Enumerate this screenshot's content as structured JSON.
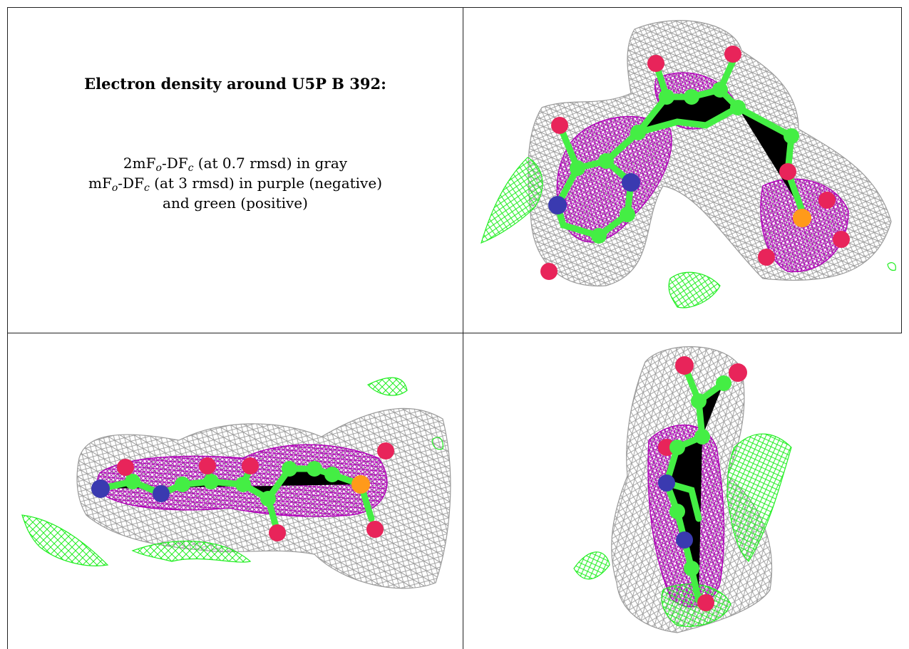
{
  "caption": {
    "title": "Electron density around U5P B 392:",
    "line1": {
      "pre": "2mF",
      "sub1": "o",
      "mid": "-DF",
      "sub2": "c",
      "post": " (at 0.7 rmsd) in gray"
    },
    "line2": {
      "pre": "mF",
      "sub1": "o",
      "mid": "-DF",
      "sub2": "c",
      "post": " (at 3 rmsd) in purple (negative)"
    },
    "line3": "and green (positive)"
  },
  "colors": {
    "mesh_2fofc": "#9a9a9a",
    "mesh_negative": "#b000b8",
    "mesh_positive": "#22ee22",
    "carbon": "#44ee44",
    "oxygen": "#e8245a",
    "nitrogen": "#3a3ab0",
    "phosphorus": "#ff9a1a",
    "border": "#222222"
  }
}
